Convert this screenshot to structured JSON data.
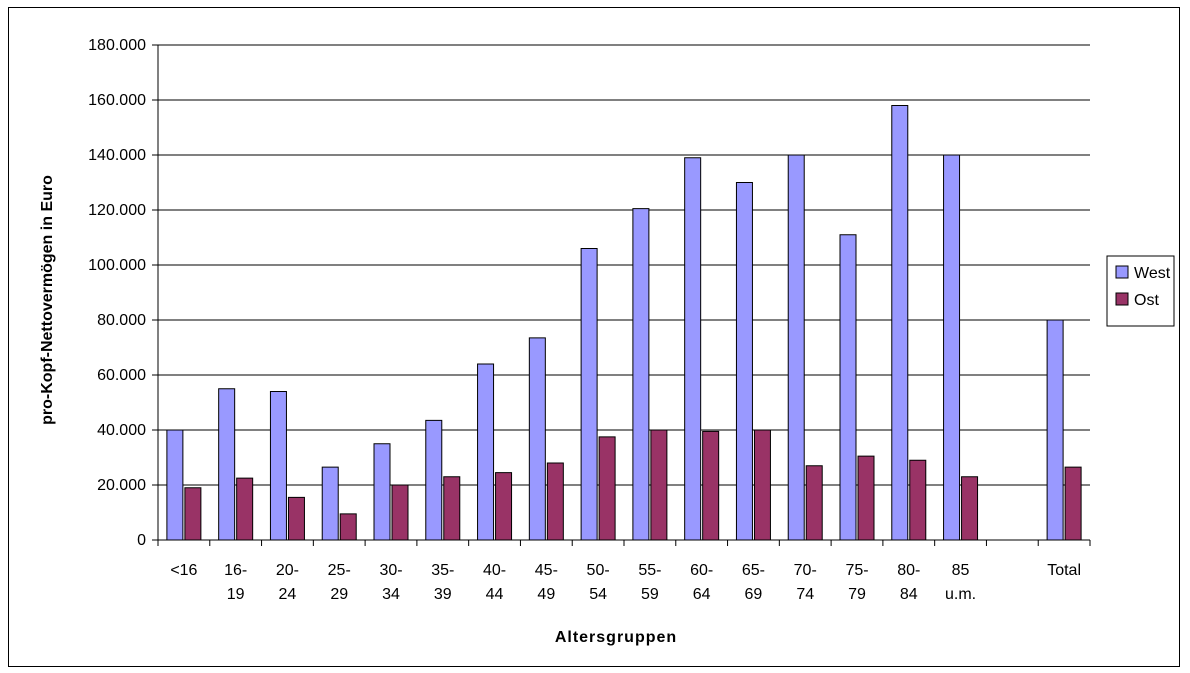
{
  "chart_data": {
    "type": "bar",
    "title": "",
    "xlabel": "Altersgruppen",
    "ylabel": "pro-Kopf-Nettovermögen in Euro",
    "ylim": [
      0,
      180000
    ],
    "ytick_step": 20000,
    "ytick_labels": [
      "0",
      "20.000",
      "40.000",
      "60.000",
      "80.000",
      "100.000",
      "120.000",
      "140.000",
      "160.000",
      "180.000"
    ],
    "grid": true,
    "legend_position": "right",
    "categories": [
      [
        "<16"
      ],
      [
        "16-",
        "19"
      ],
      [
        "20-",
        "24"
      ],
      [
        "25-",
        "29"
      ],
      [
        "30-",
        "34"
      ],
      [
        "35-",
        "39"
      ],
      [
        "40-",
        "44"
      ],
      [
        "45-",
        "49"
      ],
      [
        "50-",
        "54"
      ],
      [
        "55-",
        "59"
      ],
      [
        "60-",
        "64"
      ],
      [
        "65-",
        "69"
      ],
      [
        "70-",
        "74"
      ],
      [
        "75-",
        "79"
      ],
      [
        "80-",
        "84"
      ],
      [
        "85",
        "u.m."
      ],
      [
        ""
      ],
      [
        "Total"
      ]
    ],
    "series": [
      {
        "name": "West",
        "color": "#9999ff",
        "values": [
          40000,
          55000,
          54000,
          26500,
          35000,
          43500,
          64000,
          73500,
          106000,
          120500,
          139000,
          130000,
          140000,
          111000,
          158000,
          140000,
          null,
          80000
        ]
      },
      {
        "name": "Ost",
        "color": "#993366",
        "values": [
          19000,
          22500,
          15500,
          9500,
          20000,
          23000,
          24500,
          28000,
          37500,
          40000,
          39500,
          40000,
          27000,
          30500,
          29000,
          23000,
          null,
          26500
        ]
      }
    ]
  }
}
